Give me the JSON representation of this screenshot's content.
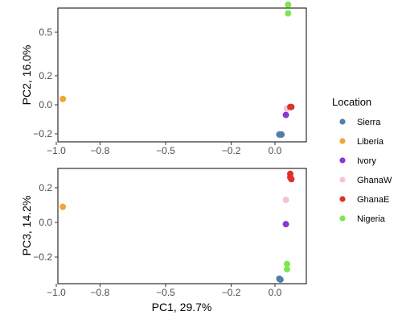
{
  "chart_data": {
    "type": "scatter",
    "panels": [
      {
        "ylabel": "PC2, 16.0%",
        "xlim": [
          -1.0,
          0.1
        ],
        "ylim": [
          -0.22,
          0.76
        ],
        "yticks": [
          -0.2,
          0.0,
          0.2,
          0.5
        ],
        "ytick_labels": [
          "−0.2",
          "0.0",
          "0.2",
          "0.5"
        ],
        "xticks": [
          -1.0,
          -0.8,
          -0.5,
          -0.2,
          0.0
        ],
        "xtick_labels": [
          "−1.0",
          "−0.8",
          "−0.5",
          "−0.2",
          "0.0"
        ],
        "series": [
          {
            "name": "Sierra",
            "points": [
              [
                0.02,
                -0.205
              ],
              [
                0.025,
                -0.205
              ],
              [
                0.03,
                -0.205
              ]
            ]
          },
          {
            "name": "Liberia",
            "points": [
              [
                -0.97,
                0.04
              ]
            ]
          },
          {
            "name": "Ivory",
            "points": [
              [
                0.05,
                -0.07
              ]
            ]
          },
          {
            "name": "GhanaW",
            "points": [
              [
                0.055,
                -0.025
              ]
            ]
          },
          {
            "name": "GhanaE",
            "points": [
              [
                0.07,
                -0.015
              ],
              [
                0.075,
                -0.015
              ]
            ]
          },
          {
            "name": "Nigeria",
            "points": [
              [
                0.06,
                0.69
              ],
              [
                0.06,
                0.63
              ]
            ]
          }
        ]
      },
      {
        "ylabel": "PC3, 14.2%",
        "xlabel": "PC1, 29.7%",
        "xlim": [
          -1.0,
          0.1
        ],
        "ylim": [
          -0.35,
          0.31
        ],
        "yticks": [
          -0.2,
          0.0,
          0.2
        ],
        "ytick_labels": [
          "−0.2",
          "0.0",
          "0.2"
        ],
        "xticks": [
          -1.0,
          -0.8,
          -0.5,
          -0.2,
          0.0
        ],
        "xtick_labels": [
          "−1.0",
          "−0.8",
          "−0.5",
          "−0.2",
          "0.0"
        ],
        "series": [
          {
            "name": "Sierra",
            "points": [
              [
                0.02,
                -0.325
              ],
              [
                0.025,
                -0.33
              ]
            ]
          },
          {
            "name": "Liberia",
            "points": [
              [
                -0.97,
                0.09
              ]
            ]
          },
          {
            "name": "Ivory",
            "points": [
              [
                0.05,
                -0.01
              ]
            ]
          },
          {
            "name": "GhanaW",
            "points": [
              [
                0.05,
                0.13
              ]
            ]
          },
          {
            "name": "GhanaE",
            "points": [
              [
                0.07,
                0.28
              ],
              [
                0.07,
                0.26
              ],
              [
                0.075,
                0.25
              ]
            ]
          },
          {
            "name": "Nigeria",
            "points": [
              [
                0.055,
                -0.24
              ],
              [
                0.055,
                -0.27
              ]
            ]
          }
        ]
      }
    ],
    "legend": {
      "title": "Location",
      "position": "right",
      "items": [
        {
          "label": "Sierra",
          "color": "#4f7fa8"
        },
        {
          "label": "Liberia",
          "color": "#f0a535"
        },
        {
          "label": "Ivory",
          "color": "#8c37d4"
        },
        {
          "label": "GhanaW",
          "color": "#f5c3cd"
        },
        {
          "label": "GhanaE",
          "color": "#de3128"
        },
        {
          "label": "Nigeria",
          "color": "#7de650"
        }
      ]
    },
    "grid": false
  }
}
